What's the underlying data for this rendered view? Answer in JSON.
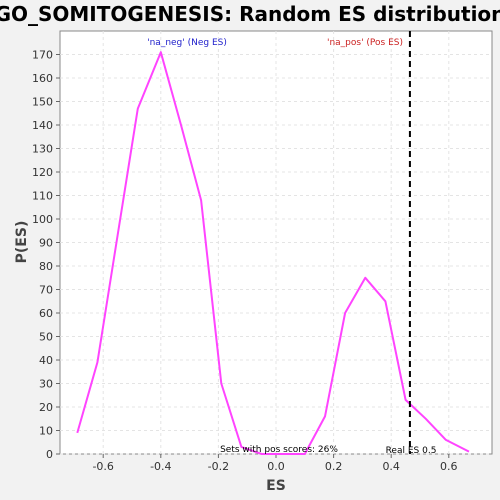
{
  "chart_data": {
    "type": "line",
    "title": "GO_SOMITOGENESIS: Random ES distribution",
    "xlabel": "ES",
    "ylabel": "P(ES)",
    "xlim": [
      -0.75,
      0.75
    ],
    "ylim": [
      0,
      180
    ],
    "x_ticks": [
      -0.6,
      -0.4,
      -0.2,
      0.0,
      0.2,
      0.4,
      0.6
    ],
    "x_tick_labels": [
      "-0.6",
      "-0.4",
      "-0.2",
      "0.0",
      "0.2",
      "0.4",
      "0.6"
    ],
    "y_ticks": [
      0,
      10,
      20,
      30,
      40,
      50,
      60,
      70,
      80,
      90,
      100,
      110,
      120,
      130,
      140,
      150,
      160,
      170
    ],
    "y_tick_labels": [
      "0",
      "10",
      "20",
      "30",
      "40",
      "50",
      "60",
      "70",
      "80",
      "90",
      "100",
      "110",
      "120",
      "130",
      "140",
      "150",
      "160",
      "170"
    ],
    "grid": true,
    "series": [
      {
        "color": "#ff44ff",
        "x": [
          -0.69,
          -0.62,
          -0.55,
          -0.48,
          -0.4,
          -0.33,
          -0.26,
          -0.19,
          -0.12,
          -0.05,
          0.03,
          0.1,
          0.17,
          0.24,
          0.31,
          0.38,
          0.45,
          0.52,
          0.59,
          0.67
        ],
        "y": [
          9,
          39,
          93,
          147,
          171,
          140,
          108,
          30,
          3,
          0,
          0,
          0,
          16,
          60,
          75,
          65,
          23,
          15,
          6,
          1
        ]
      }
    ],
    "real_es_line": {
      "x": 0.465,
      "color": "#000000",
      "style": "dashed"
    },
    "annotations": {
      "neg_label": {
        "text": "'na_neg' (Neg ES)",
        "color": "#2222cc"
      },
      "pos_label": {
        "text": "'na_pos' (Pos ES)",
        "color": "#cc2222"
      },
      "sets_text": {
        "text": "Sets with pos scores: 26%",
        "color": "#000000"
      },
      "real_es_text": {
        "text": "Real ES 0.5",
        "color": "#000000"
      }
    }
  }
}
